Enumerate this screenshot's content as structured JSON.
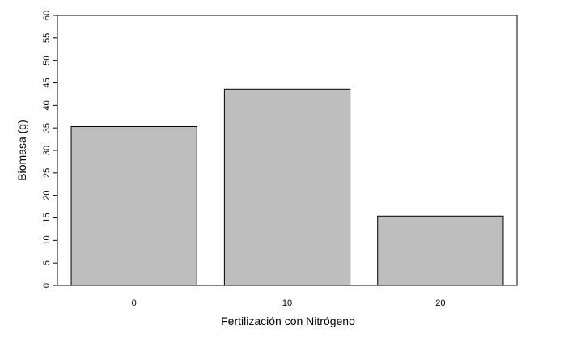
{
  "chart_data": {
    "type": "bar",
    "categories": [
      "0",
      "10",
      "20"
    ],
    "values": [
      35.3,
      43.6,
      15.4
    ],
    "title": "",
    "xlabel": "Fertilización con Nitrógeno",
    "ylabel": "Biomasa (g)",
    "ylim": [
      0,
      60
    ],
    "yticks": [
      "0",
      "5",
      "10",
      "15",
      "20",
      "25",
      "30",
      "35",
      "40",
      "45",
      "50",
      "55",
      "60"
    ],
    "grid": false,
    "legend": "none",
    "colors": {
      "bar_fill": "#bebebe",
      "bar_stroke": "#000000",
      "axis": "#000000"
    }
  }
}
